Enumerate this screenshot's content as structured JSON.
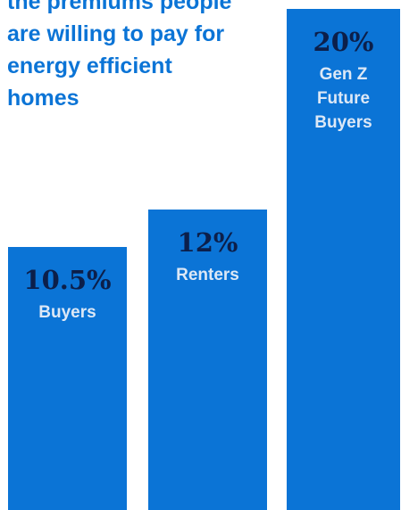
{
  "chart_data": {
    "type": "bar",
    "title": "the premiums people are willing to pay for energy efficient homes",
    "categories": [
      "Buyers",
      "Renters",
      "Gen Z Future Buyers"
    ],
    "values": [
      10.5,
      12,
      20
    ],
    "value_labels": [
      "10.5%",
      "12%",
      "20%"
    ],
    "color": "#0b74d6"
  }
}
